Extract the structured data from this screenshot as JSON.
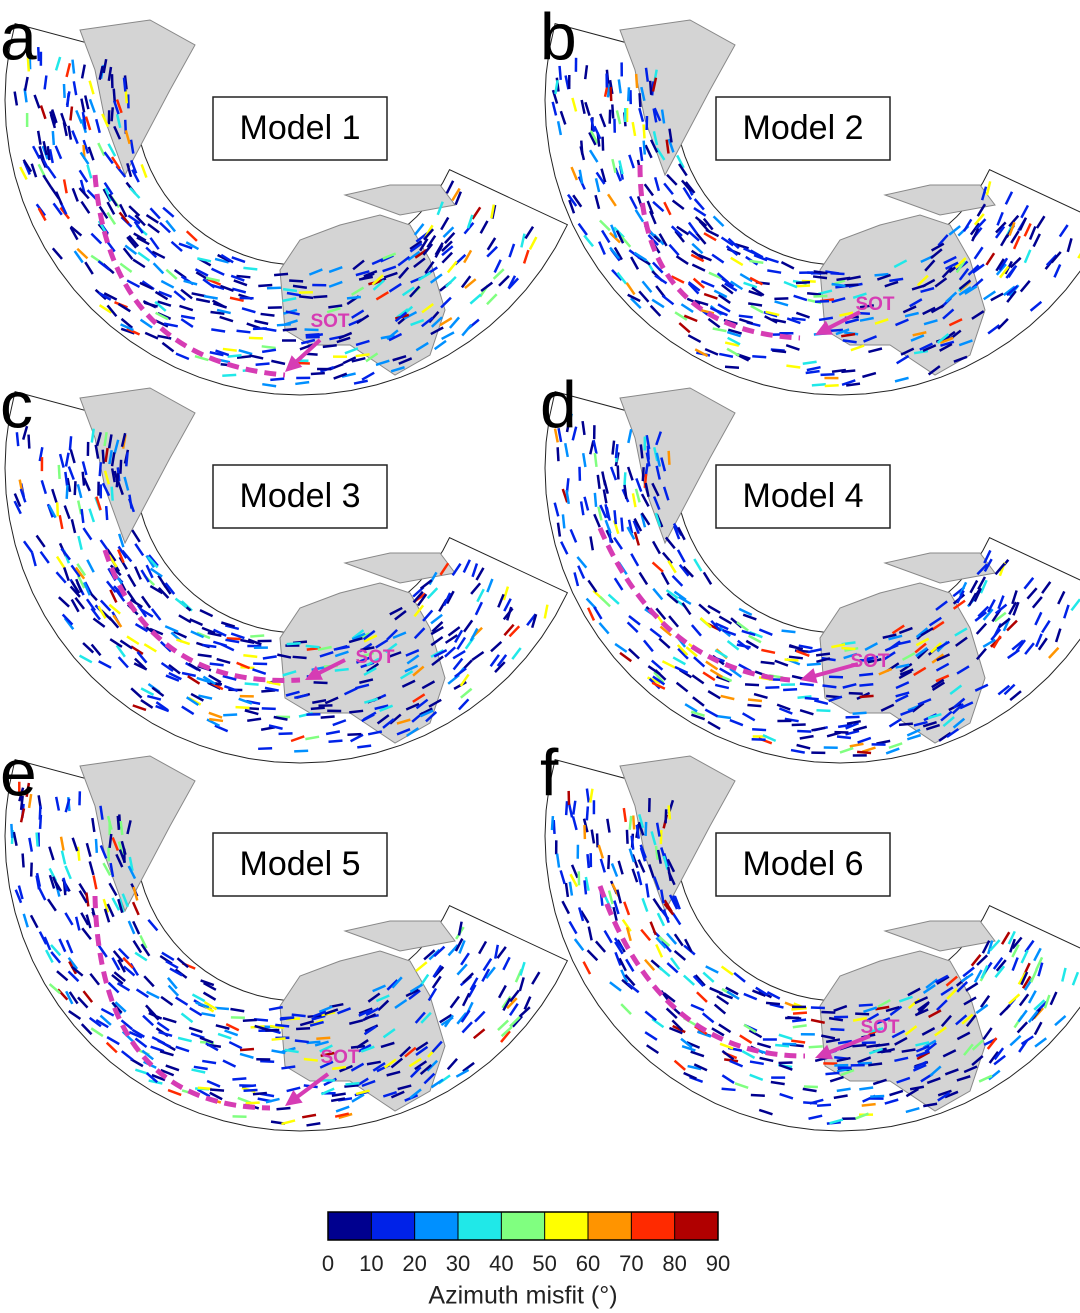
{
  "panels": [
    {
      "letter": "a",
      "model": "Model 1",
      "label": "SOT"
    },
    {
      "letter": "b",
      "model": "Model 2",
      "label": "SOT"
    },
    {
      "letter": "c",
      "model": "Model 3",
      "label": "SOT"
    },
    {
      "letter": "d",
      "model": "Model 4",
      "label": "SOT"
    },
    {
      "letter": "e",
      "model": "Model 5",
      "label": "SOT"
    },
    {
      "letter": "f",
      "model": "Model 6",
      "label": "SOT"
    }
  ],
  "colorbar": {
    "label": "Azimuth misfit (°)",
    "lim": [
      0,
      90
    ],
    "ticks": [
      0,
      10,
      20,
      30,
      40,
      50,
      60,
      70,
      80,
      90
    ],
    "colors": [
      "#00008f",
      "#0022e8",
      "#0090ff",
      "#20e8e8",
      "#80ff80",
      "#ffff00",
      "#ff9400",
      "#ff2a00",
      "#b00000"
    ]
  }
}
